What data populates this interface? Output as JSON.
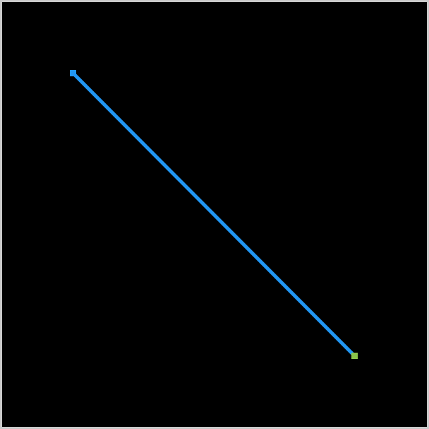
{
  "scene": {
    "background_color": "#000000",
    "frame_color": "#c9c9c9",
    "path_color": "#2196f3",
    "start_marker_color": "#2196f3",
    "end_marker_color": "#8bc34a",
    "start_marker_icon": "square-marker-icon",
    "end_marker_icon": "square-marker-icon"
  }
}
